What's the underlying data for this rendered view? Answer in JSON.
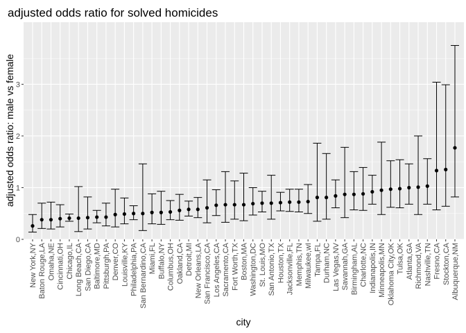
{
  "chart_data": {
    "type": "scatter",
    "title": "adjusted odds ratio for solved homicides",
    "xlabel": "city",
    "ylabel": "adjusted odds ratio: male vs female",
    "ylim": [
      0,
      4.2
    ],
    "yticks": [
      0,
      1,
      2,
      3
    ],
    "grid": true,
    "colors": {
      "panel_bg": "#ebebeb",
      "grid_major": "#ffffff",
      "point": "#000000",
      "errorbar": "#000000",
      "tick_label": "#4d4d4d"
    },
    "cities": [
      "New York,NY",
      "Baton Rouge,LA",
      "Omaha,NE",
      "Cincinnati,OH",
      "Chicago,IL",
      "Long Beach,CA",
      "San Diego,CA",
      "Baltimore,MD",
      "Pittsburgh,PA",
      "Denver,CO",
      "Louisville,KY",
      "Philadelphia,PA",
      "San Bernardino,CA",
      "Miami,FL",
      "Buffalo,NY",
      "Columbus,OH",
      "Oakland,CA",
      "Detroit,MI",
      "New Orleans,LA",
      "San Francisco,CA",
      "Los Angeles,CA",
      "Sacramento,CA",
      "Fort Worth,TX",
      "Boston,MA",
      "Washington,DC",
      "St. Louis,MO",
      "San Antonio,TX",
      "Houston,TX",
      "Jacksonville,FL",
      "Memphis,TN",
      "Milwaukee,wI",
      "Tampa,FL",
      "Durham,NC",
      "Las Vegas,NV",
      "Savannah,GA",
      "Birmingham,AL",
      "Charlotte,NC",
      "Indianapolis,IN",
      "Minneapolis,MN",
      "Oklahoma City,OK",
      "Tulsa,OK",
      "Atlanta,GA",
      "Richmond,VA",
      "Nashville,TN",
      "Fresno,CA",
      "Stockton,CA",
      "Albuquerque,NM"
    ],
    "estimate": [
      0.26,
      0.38,
      0.38,
      0.4,
      0.41,
      0.41,
      0.42,
      0.43,
      0.43,
      0.48,
      0.49,
      0.5,
      0.5,
      0.52,
      0.52,
      0.53,
      0.56,
      0.58,
      0.58,
      0.61,
      0.66,
      0.67,
      0.67,
      0.67,
      0.69,
      0.7,
      0.7,
      0.71,
      0.72,
      0.72,
      0.73,
      0.81,
      0.81,
      0.84,
      0.87,
      0.87,
      0.88,
      0.92,
      0.95,
      0.97,
      0.98,
      1.0,
      1.01,
      1.03,
      1.33,
      1.35,
      1.77
    ],
    "conf_low": [
      0.14,
      0.21,
      0.2,
      0.24,
      0.35,
      0.15,
      0.2,
      0.32,
      0.26,
      0.24,
      0.3,
      0.38,
      0.17,
      0.3,
      0.29,
      0.38,
      0.37,
      0.45,
      0.42,
      0.32,
      0.46,
      0.33,
      0.39,
      0.36,
      0.47,
      0.53,
      0.39,
      0.55,
      0.54,
      0.53,
      0.5,
      0.35,
      0.39,
      0.61,
      0.42,
      0.57,
      0.56,
      0.68,
      0.48,
      0.62,
      0.61,
      0.68,
      0.48,
      0.68,
      0.57,
      0.64,
      0.82
    ],
    "conf_high": [
      0.48,
      0.7,
      0.72,
      0.67,
      0.49,
      1.02,
      0.82,
      0.56,
      0.7,
      0.97,
      0.8,
      0.65,
      1.46,
      0.88,
      0.93,
      0.75,
      0.87,
      0.74,
      0.81,
      1.15,
      0.96,
      1.31,
      1.13,
      1.28,
      1.0,
      0.93,
      1.24,
      0.91,
      0.97,
      0.97,
      1.06,
      1.86,
      1.66,
      1.15,
      1.78,
      1.31,
      1.39,
      1.24,
      1.88,
      1.52,
      1.54,
      1.46,
      2.0,
      1.56,
      3.04,
      2.99,
      3.75
    ]
  }
}
